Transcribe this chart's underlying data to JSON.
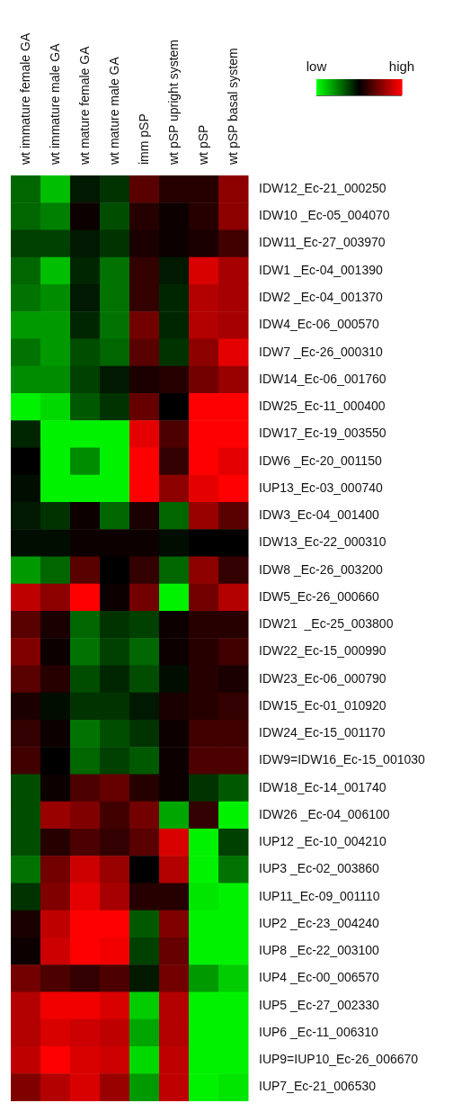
{
  "chart_data": {
    "type": "heatmap",
    "categories": [
      "wt immature female GA",
      "wt immature male GA",
      "wt mature female GA",
      "wt mature male GA",
      "imm pSP",
      "wt pSP upright system",
      "wt pSP",
      "wt pSP basal system"
    ],
    "y_categories": [
      "IDW12_Ec-21_000250",
      "IDW10 _Ec-05_004070",
      "IDW11_Ec-27_003970",
      "IDW1 _Ec-04_001390",
      "IDW2 _Ec-04_001370",
      "IDW4_Ec-06_000570",
      "IDW7 _Ec-26_000310",
      "IDW14_Ec-06_001760",
      "IDW25_Ec-11_000400",
      "IDW17_Ec-19_003550",
      "IDW6 _Ec-20_001150",
      "IUP13_Ec-03_000740",
      "IDW3_Ec-04_001400",
      "IDW13_Ec-22_000310",
      "IDW8 _Ec-26_003200",
      "IDW5_Ec-26_000660",
      "IDW21  _Ec-25_003800",
      "IDW22_Ec-15_000990",
      "IDW23_Ec-06_000790",
      "IDW15_Ec-01_010920",
      "IDW24_Ec-15_001170",
      "IDW9=IDW16_Ec-15_001030",
      "IDW18_Ec-14_001740",
      "IDW26 _Ec-04_006100",
      "IUP12 _Ec-10_004210",
      "IUP3 _Ec-02_003860",
      "IUP11_Ec-09_001110",
      "IUP2 _Ec-23_004240",
      "IUP8 _Ec-22_003100",
      "IUP4 _Ec-00_006570",
      "IUP5 _Ec-27_002330",
      "IUP6 _Ec-11_006310",
      "IUP9=IUP10_Ec-26_006670",
      "IUP7_Ec-21_006530"
    ],
    "cells": [
      [
        -0.4,
        -0.75,
        -0.1,
        -0.2,
        0.35,
        0.15,
        0.15,
        0.55
      ],
      [
        -0.4,
        -0.5,
        0.05,
        -0.3,
        0.15,
        0.05,
        0.15,
        0.55
      ],
      [
        -0.25,
        -0.25,
        -0.1,
        -0.2,
        0.1,
        0.05,
        0.1,
        0.25
      ],
      [
        -0.4,
        -0.75,
        -0.15,
        -0.45,
        0.2,
        -0.1,
        0.85,
        0.65
      ],
      [
        -0.45,
        -0.55,
        -0.1,
        -0.45,
        0.2,
        -0.15,
        0.7,
        0.65
      ],
      [
        -0.6,
        -0.6,
        -0.15,
        -0.45,
        0.45,
        -0.15,
        0.7,
        0.65
      ],
      [
        -0.45,
        -0.6,
        -0.3,
        -0.4,
        0.35,
        -0.2,
        0.55,
        0.9
      ],
      [
        -0.55,
        -0.55,
        -0.25,
        -0.1,
        0.1,
        0.15,
        0.45,
        0.6
      ],
      [
        -0.95,
        -0.85,
        -0.35,
        -0.2,
        0.4,
        0.0,
        1.0,
        1.0
      ],
      [
        -0.15,
        -0.95,
        -0.95,
        -0.95,
        0.9,
        0.3,
        1.0,
        1.0
      ],
      [
        0.0,
        -0.95,
        -0.55,
        -0.95,
        1.0,
        0.2,
        1.0,
        0.9
      ],
      [
        -0.05,
        -0.95,
        -0.95,
        -0.95,
        1.0,
        0.55,
        0.9,
        1.0
      ],
      [
        -0.1,
        -0.2,
        0.05,
        -0.4,
        0.1,
        -0.4,
        0.6,
        0.35
      ],
      [
        -0.05,
        -0.05,
        0.05,
        0.05,
        0.05,
        -0.05,
        0.0,
        0.0
      ],
      [
        -0.6,
        -0.4,
        0.35,
        0.0,
        0.2,
        -0.4,
        0.55,
        0.2
      ],
      [
        0.75,
        0.55,
        1.0,
        0.05,
        0.45,
        -0.95,
        0.45,
        0.7
      ],
      [
        0.35,
        0.1,
        -0.4,
        -0.2,
        -0.25,
        0.05,
        0.15,
        0.15
      ],
      [
        0.5,
        0.05,
        -0.45,
        -0.25,
        -0.4,
        0.05,
        0.15,
        0.25
      ],
      [
        0.35,
        0.15,
        -0.3,
        -0.15,
        -0.3,
        -0.05,
        0.15,
        0.1
      ],
      [
        0.1,
        -0.05,
        -0.2,
        -0.2,
        -0.1,
        0.1,
        0.15,
        0.2
      ],
      [
        0.2,
        0.05,
        -0.45,
        -0.3,
        -0.2,
        0.05,
        0.25,
        0.25
      ],
      [
        0.25,
        0.0,
        -0.4,
        -0.25,
        -0.35,
        0.05,
        0.3,
        0.3
      ],
      [
        -0.3,
        0.05,
        0.3,
        0.4,
        0.15,
        0.05,
        -0.2,
        -0.35
      ],
      [
        -0.3,
        0.6,
        0.5,
        0.25,
        0.45,
        -0.65,
        0.2,
        -0.95
      ],
      [
        -0.3,
        0.15,
        0.3,
        0.2,
        0.35,
        0.85,
        -0.95,
        -0.25
      ],
      [
        -0.45,
        0.45,
        0.8,
        0.6,
        0.0,
        0.7,
        -0.95,
        -0.45
      ],
      [
        -0.2,
        0.5,
        0.9,
        0.65,
        0.15,
        0.15,
        -0.9,
        -0.95
      ],
      [
        0.1,
        0.75,
        1.0,
        1.0,
        -0.35,
        0.5,
        -0.95,
        -0.95
      ],
      [
        0.05,
        0.8,
        1.0,
        0.95,
        -0.25,
        0.4,
        -0.95,
        -0.95
      ],
      [
        0.45,
        0.3,
        0.2,
        0.3,
        -0.1,
        0.45,
        -0.6,
        -0.8
      ],
      [
        0.7,
        0.95,
        0.95,
        0.85,
        -0.8,
        0.7,
        -0.95,
        -0.95
      ],
      [
        0.7,
        0.85,
        0.8,
        0.75,
        -0.65,
        0.7,
        -0.95,
        -0.95
      ],
      [
        0.75,
        1.0,
        0.85,
        0.8,
        -0.85,
        0.75,
        -0.95,
        -0.95
      ],
      [
        0.5,
        0.7,
        0.85,
        0.6,
        -0.6,
        0.75,
        -0.95,
        -0.9
      ]
    ],
    "clim": [
      -1,
      1
    ],
    "cticks": [
      {
        "value": -1,
        "label": "low"
      },
      {
        "value": 1,
        "label": "high"
      }
    ]
  }
}
